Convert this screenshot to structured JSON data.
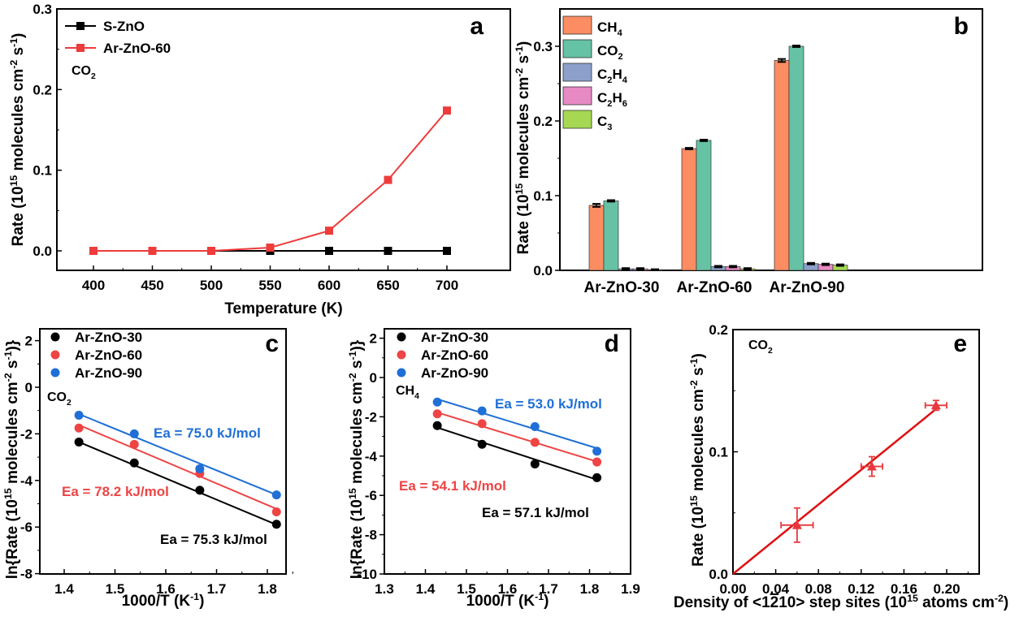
{
  "chart_data": [
    {
      "id": "a",
      "type": "line",
      "panel_label": "a",
      "annotation": {
        "main": "CO",
        "sub": "2"
      },
      "xlabel": "Temperature (K)",
      "ylabel": {
        "pre": "Rate (10",
        "sup1": "15",
        "mid": " molecules cm",
        "sup2": "-2",
        "mid2": " s",
        "sup3": "-1",
        "post": ")"
      },
      "xlim": [
        375,
        725
      ],
      "ylim": [
        -0.025,
        0.3
      ],
      "xticks": [
        400,
        450,
        500,
        550,
        600,
        650,
        700
      ],
      "xtick_labels": [
        "400",
        "450",
        "500",
        "550",
        "600",
        "650",
        "700"
      ],
      "yticks": [
        0.0,
        0.1,
        0.2,
        0.3
      ],
      "ytick_labels": [
        "0.0",
        "0.1",
        "0.2",
        "0.3"
      ],
      "legend_position": "top-left",
      "x": [
        400,
        450,
        500,
        550,
        600,
        650,
        700
      ],
      "series": [
        {
          "name": "S-ZnO",
          "color": "#000000",
          "marker": "square",
          "values": [
            0,
            0,
            0,
            0,
            0,
            0,
            0
          ]
        },
        {
          "name": "Ar-ZnO-60",
          "color": "#EE3B3B",
          "marker": "square",
          "values": [
            0,
            0,
            0,
            0.004,
            0.025,
            0.088,
            0.174
          ]
        }
      ]
    },
    {
      "id": "b",
      "type": "bar",
      "panel_label": "b",
      "ylabel": {
        "pre": "Rate (10",
        "sup1": "15",
        "mid": " molecules cm",
        "sup2": "-2",
        "mid2": " s",
        "sup3": "-1",
        "post": ")"
      },
      "xlabel": "",
      "ylim": [
        0,
        0.35
      ],
      "yticks": [
        0.0,
        0.1,
        0.2,
        0.3
      ],
      "ytick_labels": [
        "0.0",
        "0.1",
        "0.2",
        "0.3"
      ],
      "categories": [
        "Ar-ZnO-30",
        "Ar-ZnO-60",
        "Ar-ZnO-90"
      ],
      "legend_position": "top-left",
      "series": [
        {
          "name": "CH4",
          "main": "CH",
          "sub": "4",
          "sub2": "",
          "color": "#FC8D62",
          "values": [
            0.087,
            0.163,
            0.281
          ],
          "errors": [
            0.002,
            0.001,
            0.002
          ]
        },
        {
          "name": "CO2",
          "main": "CO",
          "sub": "2",
          "sub2": "",
          "color": "#66C2A5",
          "values": [
            0.093,
            0.174,
            0.3
          ],
          "errors": [
            0.001,
            0.001,
            0.001
          ]
        },
        {
          "name": "C2H4",
          "main": "C",
          "sub": "2",
          "main2": "H",
          "sub2": "4",
          "color": "#8DA0CB",
          "values": [
            0.002,
            0.005,
            0.009
          ],
          "errors": [
            0.001,
            0.001,
            0.001
          ]
        },
        {
          "name": "C2H6",
          "main": "C",
          "sub": "2",
          "main2": "H",
          "sub2": "6",
          "color": "#E78AC3",
          "values": [
            0.002,
            0.005,
            0.008
          ],
          "errors": [
            0.001,
            0.001,
            0.001
          ]
        },
        {
          "name": "C3",
          "main": "C",
          "sub": "3",
          "sub2": "",
          "color": "#A6D854",
          "values": [
            0.001,
            0.002,
            0.007
          ],
          "errors": [
            0.0005,
            0.001,
            0.001
          ]
        }
      ]
    },
    {
      "id": "c",
      "type": "scatter",
      "panel_label": "c",
      "annotation": {
        "main": "CO",
        "sub": "2"
      },
      "xlabel": {
        "pre": "1000/T (K",
        "sup": "-1",
        "post": ")"
      },
      "ylabel": {
        "pre": "ln{Rate (10",
        "sup1": "15",
        "mid": " molecules cm",
        "sup2": "-2",
        "mid2": " s",
        "sup3": "-1",
        "post": ")}"
      },
      "xlim": [
        1.33,
        1.87
      ],
      "ylim": [
        -8,
        2.5
      ],
      "xticks": [
        1.4,
        1.5,
        1.6,
        1.7,
        1.8
      ],
      "xtick_labels": [
        "1.4",
        "1.5",
        "1.6",
        "1.7",
        "1.8"
      ],
      "yticks": [
        2,
        0,
        -2,
        -4,
        -6,
        -8
      ],
      "ytick_labels": [
        "2",
        "0",
        "-2",
        "-4",
        "-6",
        "-8"
      ],
      "legend_position": "top-left",
      "x": [
        1.429,
        1.538,
        1.667,
        1.818
      ],
      "series": [
        {
          "name": "Ar-ZnO-30",
          "color": "#000000",
          "values": [
            -2.35,
            -3.25,
            -4.42,
            -5.88
          ],
          "fit": [
            -2.35,
            -5.9
          ],
          "ea": "Ea = 75.3 kJ/mol"
        },
        {
          "name": "Ar-ZnO-60",
          "color": "#EE4444",
          "values": [
            -1.75,
            -2.45,
            -3.7,
            -5.35
          ],
          "fit": [
            -1.62,
            -5.22
          ],
          "ea": "Ea = 78.2 kJ/mol"
        },
        {
          "name": "Ar-ZnO-90",
          "color": "#1F6FD6",
          "values": [
            -1.2,
            -2.0,
            -3.5,
            -4.62
          ],
          "fit": [
            -1.15,
            -4.62
          ],
          "ea": "Ea = 75.0 kJ/mol"
        }
      ]
    },
    {
      "id": "d",
      "type": "scatter",
      "panel_label": "d",
      "annotation": {
        "main": "CH",
        "sub": "4"
      },
      "xlabel": {
        "pre": "1000/T (K",
        "sup": "-1",
        "post": ")"
      },
      "ylabel": {
        "pre": "ln{Rate (10",
        "sup1": "15",
        "mid": " molecules cm",
        "sup2": "-2",
        "mid2": " s",
        "sup3": "-1",
        "post": ")}"
      },
      "xlim": [
        1.3,
        1.9
      ],
      "ylim": [
        -10,
        2.5
      ],
      "xticks": [
        1.3,
        1.4,
        1.5,
        1.6,
        1.7,
        1.8,
        1.9
      ],
      "xtick_labels": [
        "1.3",
        "1.4",
        "1.5",
        "1.6",
        "1.7",
        "1.8",
        "1.9"
      ],
      "yticks": [
        2,
        0,
        -2,
        -4,
        -6,
        -8,
        -10
      ],
      "ytick_labels": [
        "2",
        "0",
        "-2",
        "-4",
        "-6",
        "-8",
        "-10"
      ],
      "legend_position": "top-left",
      "x": [
        1.429,
        1.538,
        1.667,
        1.818
      ],
      "series": [
        {
          "name": "Ar-ZnO-30",
          "color": "#000000",
          "values": [
            -2.45,
            -3.4,
            -4.4,
            -5.1
          ],
          "fit": [
            -2.55,
            -5.2
          ],
          "ea": "Ea = 57.1 kJ/mol"
        },
        {
          "name": "Ar-ZnO-60",
          "color": "#EE4444",
          "values": [
            -1.85,
            -2.35,
            -3.3,
            -4.3
          ],
          "fit": [
            -1.78,
            -4.28
          ],
          "ea": "Ea = 54.1 kJ/mol"
        },
        {
          "name": "Ar-ZnO-90",
          "color": "#1F6FD6",
          "values": [
            -1.25,
            -1.7,
            -2.5,
            -3.75
          ],
          "fit": [
            -1.1,
            -3.6
          ],
          "ea": "Ea = 53.0 kJ/mol"
        }
      ]
    },
    {
      "id": "e",
      "type": "scatter",
      "panel_label": "e",
      "annotation": {
        "main": "CO",
        "sub": "2"
      },
      "xlabel": {
        "pre": "Density of <1",
        "bar": "2",
        "mid": "10> step sites (10",
        "sup": "15",
        "post": " atoms cm",
        "sup2": "-2",
        "end": ")"
      },
      "ylabel": {
        "pre": "Rate (10",
        "sup1": "15",
        "mid": " molecules cm",
        "sup2": "-2",
        "mid2": " s",
        "sup3": "-1",
        "post": ")"
      },
      "xlim": [
        0,
        0.23
      ],
      "ylim": [
        0,
        0.2
      ],
      "xticks": [
        0.0,
        0.04,
        0.08,
        0.12,
        0.16,
        0.2
      ],
      "xtick_labels": [
        "0.00",
        "0.04",
        "0.08",
        "0.12",
        "0.16",
        "0.20"
      ],
      "yticks": [
        0.0,
        0.1,
        0.2
      ],
      "ytick_labels": [
        "0.0",
        "0.1",
        "0.2"
      ],
      "color": "#E8383D",
      "points": [
        {
          "x": 0.06,
          "y": 0.04,
          "xerr": 0.015,
          "yerr": 0.014
        },
        {
          "x": 0.13,
          "y": 0.088,
          "xerr": 0.01,
          "yerr": 0.008
        },
        {
          "x": 0.19,
          "y": 0.138,
          "xerr": 0.01,
          "yerr": 0.004
        }
      ],
      "fit": {
        "x": [
          0,
          0.19
        ],
        "y": [
          0,
          0.135
        ]
      }
    }
  ]
}
